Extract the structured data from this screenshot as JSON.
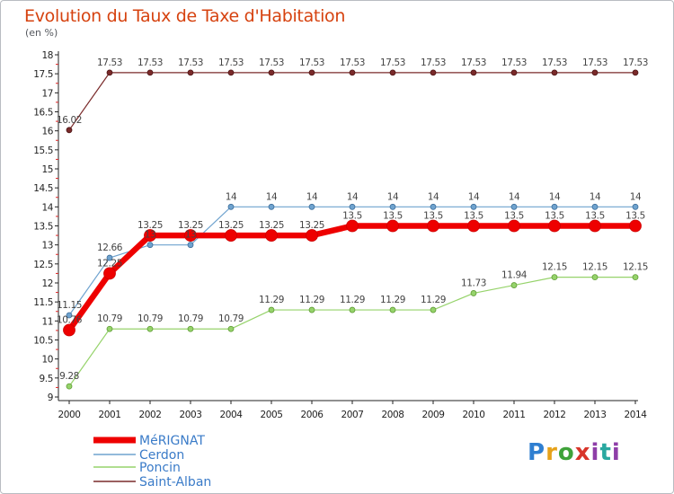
{
  "header": {
    "title": "Evolution du Taux de Taxe d'Habitation",
    "unit": "(en %)"
  },
  "logo": {
    "text": "Proxiti"
  },
  "chart_data": {
    "type": "line",
    "title": "Evolution du Taux de Taxe d'Habitation",
    "ylabel": "(en %)",
    "xlabel": "",
    "x": [
      2000,
      2001,
      2002,
      2003,
      2004,
      2005,
      2006,
      2007,
      2008,
      2009,
      2010,
      2011,
      2012,
      2013,
      2014
    ],
    "ylim": [
      9,
      18
    ],
    "yticks": [
      "9",
      "9.5",
      "10",
      "10.5",
      "11",
      "11.5",
      "12",
      "12.5",
      "13",
      "13.5",
      "14",
      "14.5",
      "15",
      "15.5",
      "16",
      "16.5",
      "17",
      "17.5",
      "18"
    ],
    "grid": false,
    "legend_position": "bottom-left",
    "series": [
      {
        "name": "Saint-Alban",
        "color": "#7a2a2a",
        "values": [
          16.02,
          17.53,
          17.53,
          17.53,
          17.53,
          17.53,
          17.53,
          17.53,
          17.53,
          17.53,
          17.53,
          17.53,
          17.53,
          17.53,
          17.53
        ],
        "labels": [
          "16.02",
          "17.53",
          "17.53",
          "17.53",
          "17.53",
          "17.53",
          "17.53",
          "17.53",
          "17.53",
          "17.53",
          "17.53",
          "17.53",
          "17.53",
          "17.53",
          "17.53"
        ]
      },
      {
        "name": "Cerdon",
        "color": "#6fa3cf",
        "values": [
          11.15,
          12.66,
          13.0,
          13.0,
          14,
          14,
          14,
          14,
          14,
          14,
          14,
          14,
          14,
          14,
          14
        ],
        "labels": [
          "11.15",
          "12.66",
          "13",
          "13",
          "14",
          "14",
          "14",
          "14",
          "14",
          "14",
          "14",
          "14",
          "14",
          "14",
          "14"
        ]
      },
      {
        "name": "Poncin",
        "color": "#96d36b",
        "values": [
          9.28,
          10.79,
          10.79,
          10.79,
          10.79,
          11.29,
          11.29,
          11.29,
          11.29,
          11.29,
          11.73,
          11.94,
          12.15,
          12.15,
          12.15
        ],
        "labels": [
          "9.28",
          "10.79",
          "10.79",
          "10.79",
          "10.79",
          "11.29",
          "11.29",
          "11.29",
          "11.29",
          "11.29",
          "11.73",
          "11.94",
          "12.15",
          "12.15",
          "12.15"
        ]
      },
      {
        "name": "MéRIGNAT",
        "color": "#ee0000",
        "values": [
          10.76,
          12.25,
          13.25,
          13.25,
          13.25,
          13.25,
          13.25,
          13.5,
          13.5,
          13.5,
          13.5,
          13.5,
          13.5,
          13.5,
          13.5
        ],
        "labels": [
          "10.76",
          "12.25",
          "13.25",
          "13.25",
          "13.25",
          "13.25",
          "13.25",
          "13.5",
          "13.5",
          "13.5",
          "13.5",
          "13.5",
          "13.5",
          "13.5",
          "13.5"
        ]
      }
    ],
    "legend": [
      "MéRIGNAT",
      "Cerdon",
      "Poncin",
      "Saint-Alban"
    ]
  }
}
